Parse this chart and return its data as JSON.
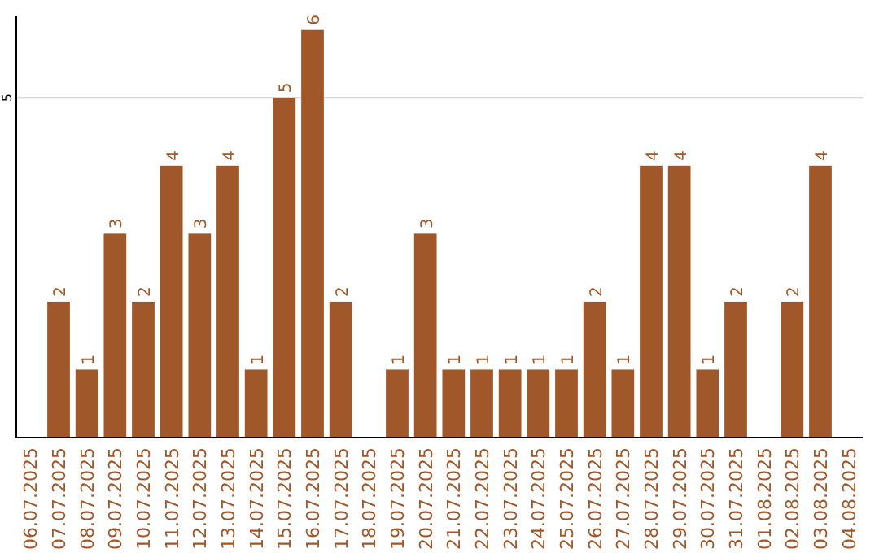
{
  "chart_data": {
    "type": "bar",
    "categories": [
      "06.07.2025",
      "07.07.2025",
      "08.07.2025",
      "09.07.2025",
      "10.07.2025",
      "11.07.2025",
      "12.07.2025",
      "13.07.2025",
      "14.07.2025",
      "15.07.2025",
      "16.07.2025",
      "17.07.2025",
      "18.07.2025",
      "19.07.2025",
      "20.07.2025",
      "21.07.2025",
      "22.07.2025",
      "23.07.2025",
      "24.07.2025",
      "25.07.2025",
      "26.07.2025",
      "27.07.2025",
      "28.07.2025",
      "29.07.2025",
      "30.07.2025",
      "31.07.2025",
      "01.08.2025",
      "02.08.2025",
      "03.08.2025",
      "04.08.2025"
    ],
    "values": [
      0,
      2,
      1,
      3,
      2,
      4,
      3,
      4,
      1,
      5,
      6,
      2,
      0,
      1,
      3,
      1,
      1,
      1,
      1,
      1,
      2,
      1,
      4,
      4,
      1,
      2,
      0,
      2,
      4,
      0
    ],
    "value_labels": [
      null,
      "2",
      "1",
      "3",
      "2",
      "4",
      "3",
      "4",
      "1",
      "5",
      "6",
      "2",
      null,
      "1",
      "3",
      "1",
      "1",
      "1",
      "1",
      "1",
      "2",
      "1",
      "4",
      "4",
      "1",
      "2",
      null,
      "2",
      "4",
      null
    ],
    "color": "#a0582a",
    "ylim": [
      0,
      6.2
    ],
    "yticks": [
      5
    ],
    "grid": "y"
  }
}
